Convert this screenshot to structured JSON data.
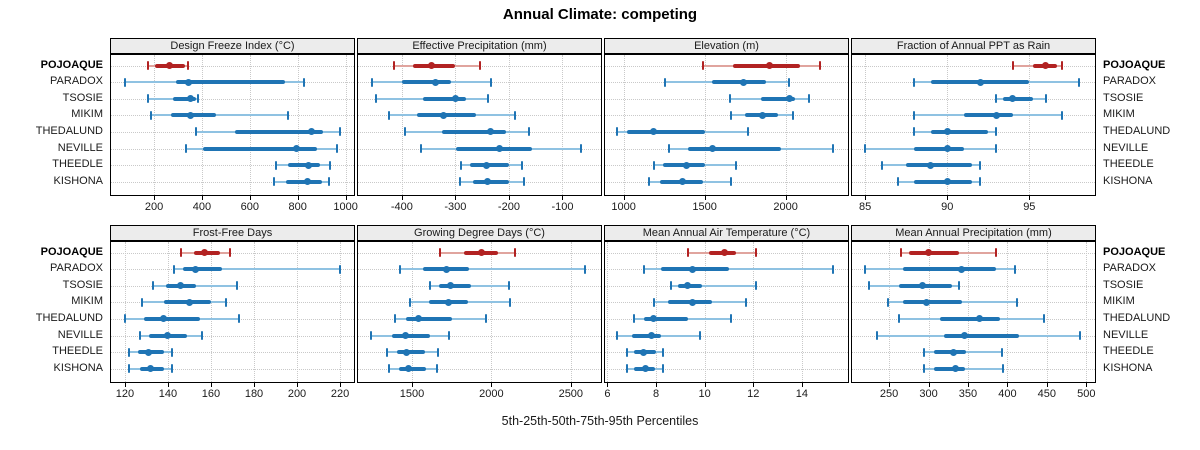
{
  "title": "Annual Climate: competing",
  "xlabel": "5th-25th-50th-75th-95th Percentiles",
  "colors": {
    "highlight_dark": "#b22222",
    "highlight_light": "#e0a49e",
    "base_dark": "#1f74b4",
    "base_light": "#8fc2e2",
    "strip_bg": "#ececec",
    "panel_border": "#000000",
    "grid": "#c9c9c9",
    "text": "#1a1a1a"
  },
  "chart_data": {
    "type": "interval",
    "subtype": "trellis-percentile-dotplot",
    "title": "Annual Climate: competing",
    "xlabel": "5th-25th-50th-75th-95th Percentiles",
    "percentile_levels": [
      5,
      25,
      50,
      75,
      95
    ],
    "grid": true,
    "locations": [
      "POJOAQUE",
      "PARADOX",
      "TSOSIE",
      "MIKIM",
      "THEDALUND",
      "NEVILLE",
      "THEEDLE",
      "KISHONA"
    ],
    "highlighted_series": "POJOAQUE",
    "panels": [
      {
        "title": "Design Freeze Index (°C)",
        "grid_row": 0,
        "grid_col": 0,
        "xlim": [
          20,
          1035
        ],
        "ticks": [
          200,
          400,
          600,
          800,
          1000
        ],
        "series": [
          [
            175,
            205,
            265,
            330,
            340
          ],
          [
            80,
            290,
            345,
            745,
            825
          ],
          [
            175,
            280,
            350,
            375,
            385
          ],
          [
            185,
            270,
            350,
            460,
            760
          ],
          [
            377,
            540,
            858,
            905,
            975
          ],
          [
            335,
            405,
            795,
            880,
            965
          ],
          [
            710,
            760,
            845,
            895,
            935
          ],
          [
            700,
            750,
            840,
            900,
            930
          ]
        ]
      },
      {
        "title": "Effective Precipitation (mm)",
        "grid_row": 0,
        "grid_col": 1,
        "xlim": [
          -482,
          -28
        ],
        "ticks": [
          -400,
          -300,
          -200,
          -100
        ],
        "series": [
          [
            -415,
            -380,
            -345,
            -300,
            -255
          ],
          [
            -455,
            -400,
            -337,
            -308,
            -233
          ],
          [
            -448,
            -360,
            -299,
            -280,
            -240
          ],
          [
            -425,
            -372,
            -323,
            -262,
            -188
          ],
          [
            -395,
            -325,
            -235,
            -205,
            -162
          ],
          [
            -365,
            -298,
            -218,
            -156,
            -65
          ],
          [
            -290,
            -272,
            -242,
            -200,
            -175
          ],
          [
            -292,
            -268,
            -240,
            -200,
            -172
          ]
        ]
      },
      {
        "title": "Elevation (m)",
        "grid_row": 0,
        "grid_col": 2,
        "xlim": [
          885,
          2385
        ],
        "ticks": [
          1000,
          1500,
          2000
        ],
        "series": [
          [
            1490,
            1675,
            1900,
            2090,
            2210
          ],
          [
            1255,
            1545,
            1740,
            1880,
            2020
          ],
          [
            1655,
            1845,
            2025,
            2060,
            2145
          ],
          [
            1660,
            1750,
            1860,
            1950,
            2045
          ],
          [
            960,
            1020,
            1185,
            1500,
            1770
          ],
          [
            1280,
            1395,
            1550,
            1970,
            2295
          ],
          [
            1185,
            1245,
            1390,
            1500,
            1695
          ],
          [
            1155,
            1225,
            1365,
            1490,
            1665
          ]
        ]
      },
      {
        "title": "Fraction of Annual PPT as Rain",
        "grid_row": 0,
        "grid_col": 3,
        "xlim": [
          84.2,
          99
        ],
        "ticks": [
          85,
          90,
          95
        ],
        "series": [
          [
            94,
            95.2,
            96,
            96.7,
            97
          ],
          [
            88,
            89,
            92,
            95,
            98
          ],
          [
            93,
            93.4,
            94,
            95.2,
            96
          ],
          [
            88,
            91,
            93,
            94,
            97
          ],
          [
            88,
            89,
            90,
            92.5,
            93
          ],
          [
            85,
            88,
            90,
            91,
            93
          ],
          [
            86,
            87.5,
            89,
            91.5,
            92
          ],
          [
            87,
            88,
            90,
            91.5,
            92
          ]
        ]
      },
      {
        "title": "Frost-Free Days",
        "grid_row": 1,
        "grid_col": 0,
        "xlim": [
          113.5,
          226.5
        ],
        "ticks": [
          120,
          140,
          160,
          180,
          200,
          220
        ],
        "series": [
          [
            146,
            152,
            157,
            164,
            169
          ],
          [
            143,
            147,
            153,
            165,
            220
          ],
          [
            133,
            139,
            146,
            153,
            172
          ],
          [
            128,
            138,
            150,
            160,
            167
          ],
          [
            120,
            129,
            138,
            155,
            173
          ],
          [
            127,
            131,
            140,
            149,
            156
          ],
          [
            122,
            126,
            131,
            138,
            142
          ],
          [
            122,
            127,
            132,
            138,
            142
          ]
        ]
      },
      {
        "title": "Growing Degree Days (°C)",
        "grid_row": 1,
        "grid_col": 1,
        "xlim": [
          1160,
          2690
        ],
        "ticks": [
          1500,
          2000,
          2500
        ],
        "series": [
          [
            1675,
            1830,
            1940,
            2040,
            2150
          ],
          [
            1425,
            1570,
            1715,
            1860,
            2590
          ],
          [
            1615,
            1670,
            1740,
            1870,
            2110
          ],
          [
            1490,
            1605,
            1730,
            1855,
            2120
          ],
          [
            1395,
            1465,
            1540,
            1755,
            1965
          ],
          [
            1240,
            1375,
            1460,
            1615,
            1730
          ],
          [
            1345,
            1405,
            1465,
            1580,
            1665
          ],
          [
            1355,
            1415,
            1475,
            1590,
            1660
          ]
        ]
      },
      {
        "title": "Mean Annual Air Temperature (°C)",
        "grid_row": 1,
        "grid_col": 2,
        "xlim": [
          5.9,
          15.9
        ],
        "ticks": [
          6,
          8,
          10,
          12,
          14
        ],
        "series": [
          [
            9.3,
            10.2,
            10.8,
            11.3,
            12.1
          ],
          [
            7.5,
            8.2,
            9.5,
            11,
            15.3
          ],
          [
            8.6,
            8.9,
            9.3,
            9.9,
            12.1
          ],
          [
            7.9,
            8.5,
            9.5,
            10.3,
            11.7
          ],
          [
            7.1,
            7.5,
            7.9,
            9.3,
            11.1
          ],
          [
            6.4,
            7,
            7.8,
            8.2,
            9.8
          ],
          [
            6.8,
            7.1,
            7.5,
            8,
            8.3
          ],
          [
            6.8,
            7.1,
            7.55,
            7.95,
            8.3
          ]
        ]
      },
      {
        "title": "Mean Annual Precipitation (mm)",
        "grid_row": 1,
        "grid_col": 3,
        "xlim": [
          203,
          511
        ],
        "ticks": [
          250,
          300,
          350,
          400,
          450,
          500
        ],
        "series": [
          [
            265,
            275,
            300,
            338,
            385
          ],
          [
            220,
            268,
            342,
            385,
            410
          ],
          [
            224,
            262,
            292,
            330,
            339
          ],
          [
            248,
            268,
            298,
            343,
            412
          ],
          [
            262,
            315,
            364,
            390,
            446
          ],
          [
            235,
            320,
            346,
            415,
            492
          ],
          [
            294,
            307,
            332,
            348,
            393
          ],
          [
            294,
            307,
            334,
            346,
            394
          ]
        ]
      }
    ]
  }
}
